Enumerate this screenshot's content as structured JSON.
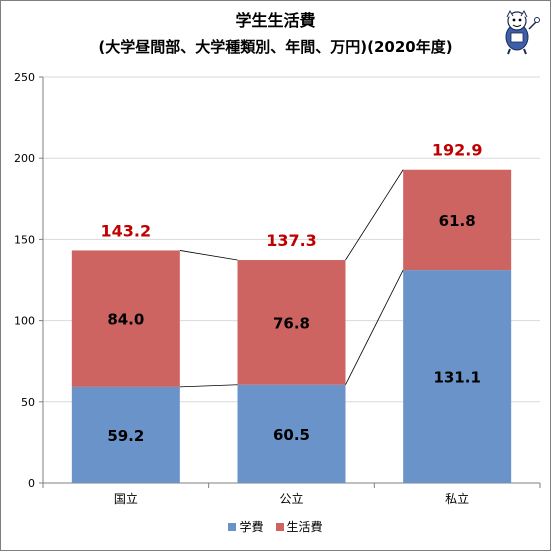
{
  "chart_data": {
    "type": "bar",
    "stacked": true,
    "title": "学生生活費",
    "subtitle": "(大学昼間部、大学種類別、年間、万円)(2020年度)",
    "categories": [
      "国立",
      "公立",
      "私立"
    ],
    "series": [
      {
        "name": "学費",
        "values": [
          59.2,
          60.5,
          131.1
        ],
        "color": "#6a93c9"
      },
      {
        "name": "生活費",
        "values": [
          84.0,
          76.8,
          61.8
        ],
        "color": "#cd6462"
      }
    ],
    "totals": [
      143.2,
      137.3,
      192.9
    ],
    "total_color": "#c00000",
    "ylim": [
      0,
      250
    ],
    "yticks": [
      0,
      50,
      100,
      150,
      200,
      250
    ],
    "grid": true,
    "series_connector_lines": true,
    "legend_position": "bottom"
  },
  "mascot_icon": "mascot-character-icon"
}
